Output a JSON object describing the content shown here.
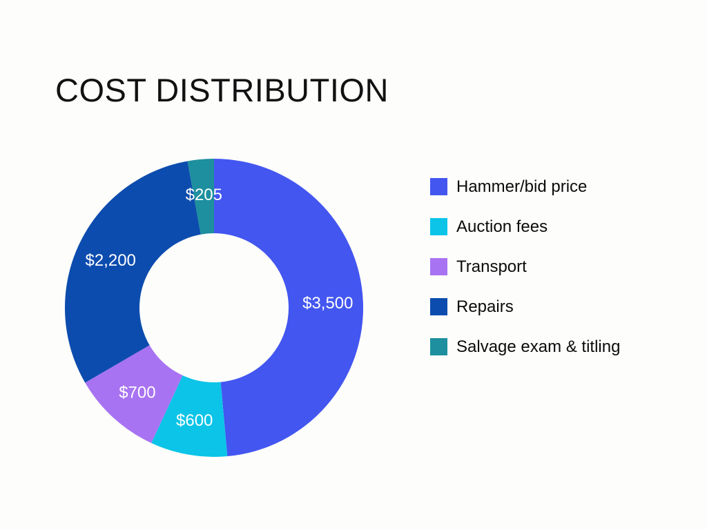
{
  "page": {
    "background_color": "#fdfdfb",
    "title": "COST DISTRIBUTION"
  },
  "chart_data": {
    "type": "pie",
    "subtype": "donut",
    "title": "COST DISTRIBUTION",
    "start_angle_deg": 0,
    "direction": "clockwise",
    "inner_radius_ratio": 0.5,
    "total": 7205,
    "legend_position": "right",
    "value_label_color": "#ffffff",
    "segments": [
      {
        "label": "Hammer/bid price",
        "value": 3500,
        "display_value": "$3,500",
        "color": "#4356f0"
      },
      {
        "label": "Auction fees",
        "value": 600,
        "display_value": "$600",
        "color": "#0bc4e8"
      },
      {
        "label": "Transport",
        "value": 700,
        "display_value": "$700",
        "color": "#a873f2"
      },
      {
        "label": "Repairs",
        "value": 2200,
        "display_value": "$2,200",
        "color": "#0c4cae"
      },
      {
        "label": "Salvage exam & titling",
        "value": 205,
        "display_value": "$205",
        "color": "#1d8f9e"
      }
    ]
  }
}
